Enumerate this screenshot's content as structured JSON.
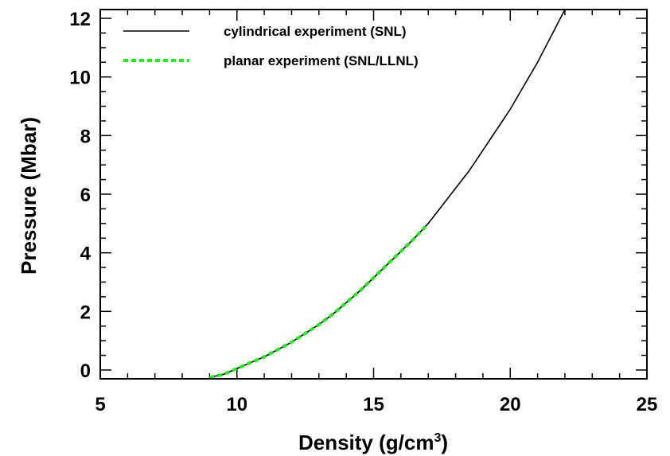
{
  "chart_data": {
    "type": "line",
    "xlabel": "Density  (g/cm",
    "xlabel_superscript": "3",
    "xlabel_close": ")",
    "ylabel": "Pressure  (Mbar)",
    "xlim": [
      5,
      25
    ],
    "ylim": [
      -0.3,
      12.3
    ],
    "x_ticks": [
      5,
      10,
      15,
      20,
      25
    ],
    "y_ticks": [
      0,
      2,
      4,
      6,
      8,
      10,
      12
    ],
    "x_tick_labels": [
      "5",
      "10",
      "15",
      "20",
      "25"
    ],
    "y_tick_labels": [
      "0",
      "2",
      "4",
      "6",
      "8",
      "10",
      "12"
    ],
    "grid": false,
    "legend_position": "top-left",
    "series": [
      {
        "name": "cylindrical experiment (SNL)",
        "color": "#000000",
        "style": "solid",
        "x": [
          9.0,
          9.5,
          10.0,
          10.5,
          11.0,
          11.5,
          12.0,
          12.5,
          13.0,
          13.5,
          14.0,
          14.5,
          15.0,
          15.5,
          16.0,
          16.5,
          17.0,
          17.5,
          18.0,
          18.5,
          19.0,
          19.5,
          20.0,
          20.5,
          21.0,
          21.5,
          22.0
        ],
        "y": [
          -0.25,
          -0.15,
          0.05,
          0.25,
          0.45,
          0.7,
          0.95,
          1.25,
          1.55,
          1.9,
          2.3,
          2.7,
          3.15,
          3.6,
          4.05,
          4.5,
          5.0,
          5.6,
          6.2,
          6.8,
          7.5,
          8.2,
          8.9,
          9.7,
          10.5,
          11.4,
          12.3
        ]
      },
      {
        "name": "planar experiment (SNL/LLNL)",
        "color": "#22ee22",
        "style": "dashed",
        "x": [
          9.0,
          9.5,
          10.0,
          10.5,
          11.0,
          11.5,
          12.0,
          12.5,
          13.0,
          13.5,
          14.0,
          14.5,
          15.0,
          15.5,
          16.0,
          16.5,
          16.9
        ],
        "y": [
          -0.25,
          -0.15,
          0.05,
          0.25,
          0.45,
          0.7,
          0.95,
          1.25,
          1.55,
          1.9,
          2.3,
          2.7,
          3.15,
          3.6,
          4.05,
          4.5,
          4.9
        ]
      }
    ]
  }
}
